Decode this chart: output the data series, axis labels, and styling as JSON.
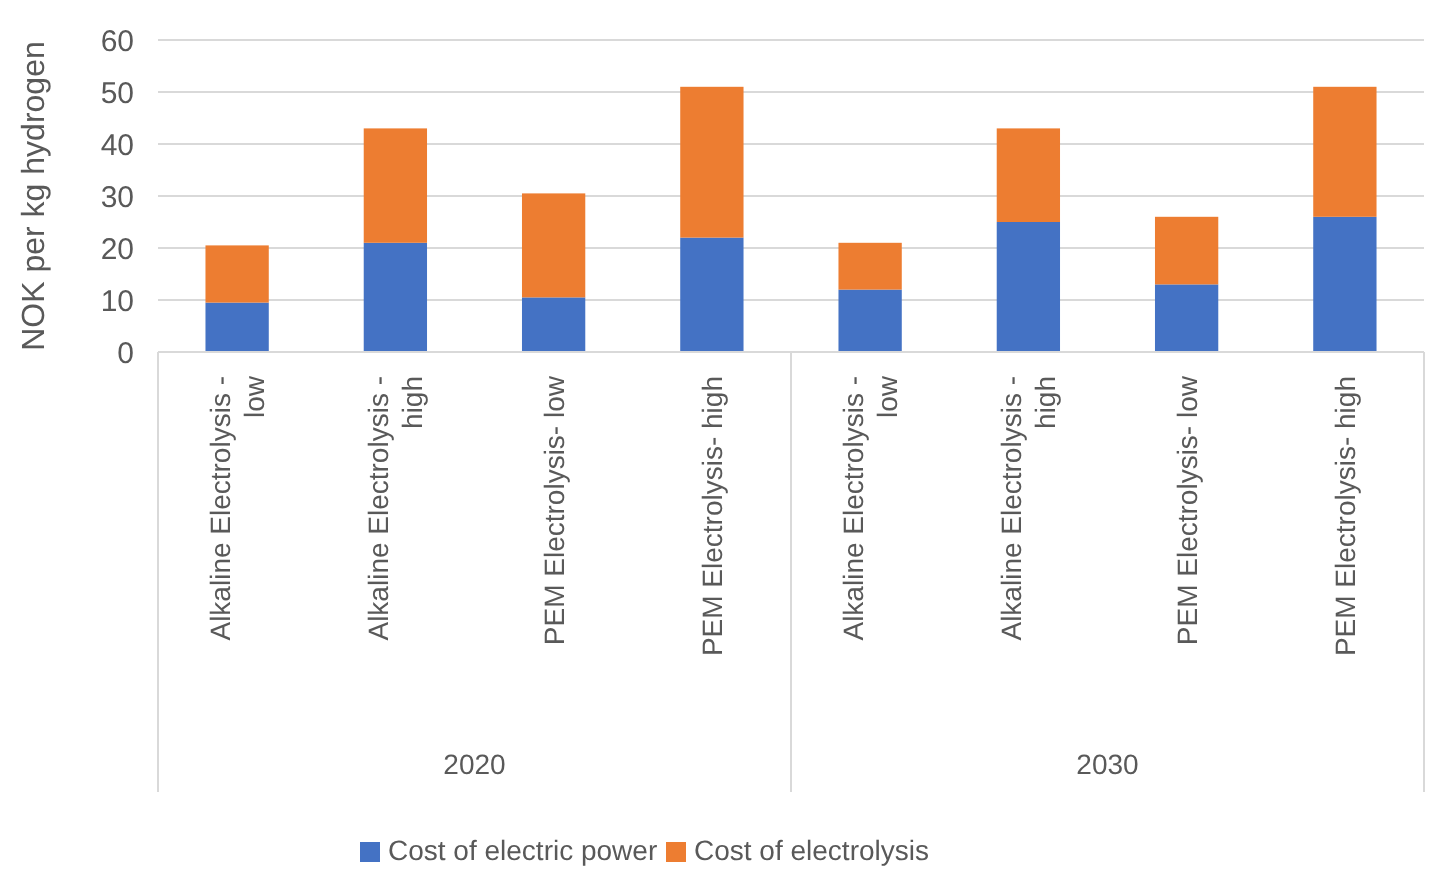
{
  "chart_data": {
    "type": "bar",
    "stacked": true,
    "ylabel": "NOK per kg hydrogen",
    "categories": [
      "Alkaline Electrolysis - low",
      "Alkaline Electrolysis - high",
      "PEM Electrolysis- low",
      "PEM Electrolysis- high",
      "Alkaline Electrolysis - low",
      "Alkaline Electrolysis - high",
      "PEM Electrolysis- low",
      "PEM Electrolysis- high"
    ],
    "series": [
      {
        "name": "Cost of electric power",
        "color": "#4472c4",
        "values": [
          9.5,
          21,
          10.5,
          22,
          12,
          25,
          13,
          26
        ]
      },
      {
        "name": "Cost of electrolysis",
        "color": "#ed7d31",
        "values": [
          11,
          22,
          20,
          29,
          9,
          18,
          13,
          25
        ]
      }
    ],
    "annotations": [
      "2020",
      "2030"
    ],
    "ylim": [
      0,
      60
    ],
    "yticks": [
      0,
      10,
      20,
      30,
      40,
      50,
      60
    ],
    "grid": "y",
    "legend": "bottom"
  }
}
